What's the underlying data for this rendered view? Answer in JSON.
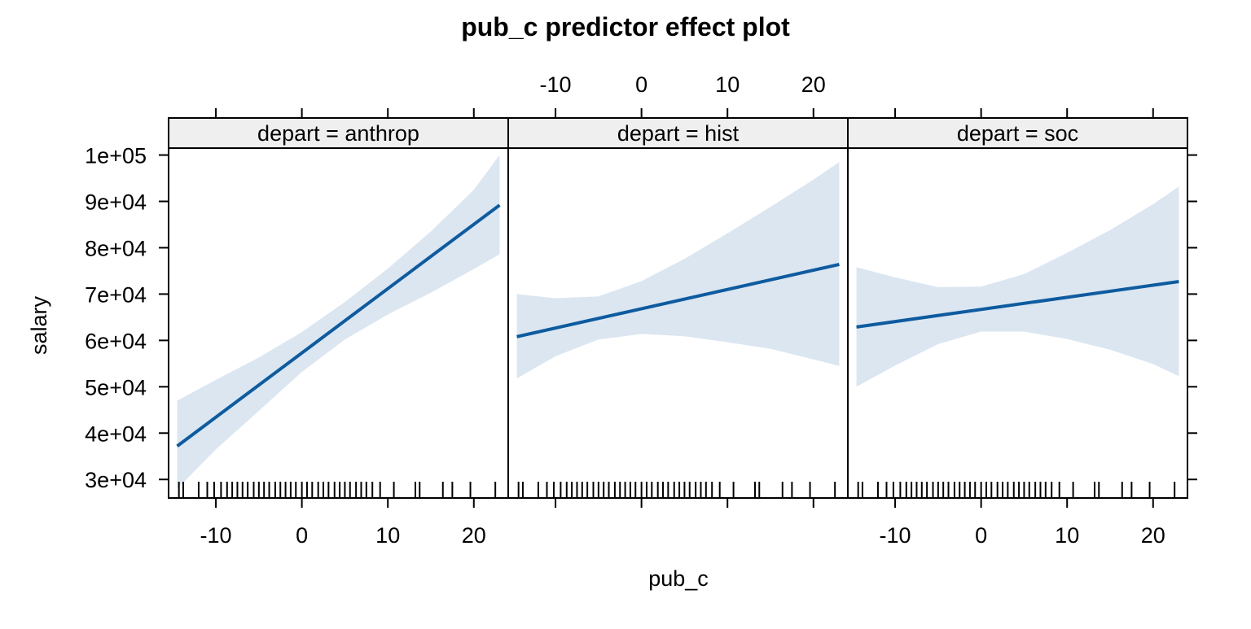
{
  "chart_data": {
    "type": "line",
    "title": "pub_c predictor effect plot",
    "xlabel": "pub_c",
    "ylabel": "salary",
    "xlim": [
      -15.5,
      24
    ],
    "ylim": [
      26000,
      101500
    ],
    "x_ticks": [
      -10,
      0,
      10,
      20
    ],
    "x_tick_labels": [
      "-10",
      "0",
      "10",
      "20"
    ],
    "y_ticks": [
      30000,
      40000,
      50000,
      60000,
      70000,
      80000,
      90000,
      100000
    ],
    "y_tick_labels": [
      "3e+04",
      "4e+04",
      "5e+04",
      "6e+04",
      "7e+04",
      "8e+04",
      "9e+04",
      "1e+05"
    ],
    "grid": false,
    "colors": {
      "line": "#0e5b9f",
      "band": "#dbe6f1",
      "strip": "#efefef",
      "axis": "#000000"
    },
    "panels": [
      {
        "strip": "depart = anthrop",
        "fit": {
          "x": [
            -14.5,
            23
          ],
          "y": [
            37200,
            89200
          ]
        },
        "band_upper": {
          "x": [
            -14.5,
            -10,
            -5,
            0,
            5,
            10,
            15,
            20,
            23
          ],
          "y": [
            47000,
            51500,
            56300,
            61800,
            68300,
            75500,
            83500,
            92500,
            100000
          ]
        },
        "band_lower": {
          "x": [
            -14.5,
            -10,
            -5,
            0,
            5,
            10,
            15,
            20,
            23
          ],
          "y": [
            28000,
            36500,
            44800,
            53200,
            60200,
            65600,
            70300,
            75400,
            78600
          ]
        },
        "rug": [
          -14.3,
          -13.8,
          -12.0,
          -11.0,
          -10.2,
          -9.4,
          -8.7,
          -8.1,
          -7.5,
          -6.9,
          -6.3,
          -5.6,
          -5.0,
          -4.4,
          -3.8,
          -3.1,
          -2.5,
          -1.9,
          -1.3,
          -0.7,
          0.0,
          0.6,
          1.2,
          1.9,
          2.5,
          3.1,
          3.8,
          4.4,
          5.0,
          5.6,
          6.3,
          6.9,
          7.5,
          8.2,
          9.1,
          10.7,
          13.2,
          13.7,
          16.4,
          17.5,
          19.6,
          22.5
        ]
      },
      {
        "strip": "depart = hist",
        "fit": {
          "x": [
            -14.5,
            23
          ],
          "y": [
            60800,
            76400
          ]
        },
        "band_upper": {
          "x": [
            -14.5,
            -10,
            -5,
            0,
            5,
            10,
            15,
            20,
            23
          ],
          "y": [
            70000,
            69100,
            69500,
            72800,
            77600,
            83100,
            88800,
            94700,
            98500
          ]
        },
        "band_lower": {
          "x": [
            -14.5,
            -10,
            -5,
            0,
            5,
            10,
            15,
            20,
            23
          ],
          "y": [
            51800,
            56600,
            60200,
            61400,
            60900,
            59600,
            58200,
            55900,
            54500
          ]
        },
        "rug": [
          -14.3,
          -13.8,
          -12.0,
          -11.0,
          -10.2,
          -9.4,
          -8.7,
          -8.1,
          -7.5,
          -6.9,
          -6.3,
          -5.6,
          -5.0,
          -4.4,
          -3.8,
          -3.1,
          -2.5,
          -1.9,
          -1.3,
          -0.7,
          0.0,
          0.6,
          1.2,
          1.9,
          2.5,
          3.1,
          3.8,
          4.4,
          5.0,
          5.6,
          6.3,
          6.9,
          7.5,
          8.2,
          9.1,
          10.7,
          13.2,
          13.7,
          16.4,
          17.5,
          19.6,
          22.5
        ]
      },
      {
        "strip": "depart = soc",
        "fit": {
          "x": [
            -14.5,
            23
          ],
          "y": [
            62900,
            72700
          ]
        },
        "band_upper": {
          "x": [
            -14.5,
            -10,
            -5,
            0,
            5,
            10,
            15,
            20,
            23
          ],
          "y": [
            75800,
            73600,
            71500,
            71600,
            74300,
            78900,
            83800,
            89400,
            93200
          ]
        },
        "band_lower": {
          "x": [
            -14.5,
            -10,
            -5,
            0,
            5,
            10,
            15,
            20,
            23
          ],
          "y": [
            50000,
            54600,
            59200,
            61900,
            61900,
            60300,
            58000,
            54900,
            52300
          ]
        },
        "rug": [
          -14.3,
          -13.8,
          -12.0,
          -11.0,
          -10.2,
          -9.4,
          -8.7,
          -8.1,
          -7.5,
          -6.9,
          -6.3,
          -5.6,
          -5.0,
          -4.4,
          -3.8,
          -3.1,
          -2.5,
          -1.9,
          -1.3,
          -0.7,
          0.0,
          0.6,
          1.2,
          1.9,
          2.5,
          3.1,
          3.8,
          4.4,
          5.0,
          5.6,
          6.3,
          6.9,
          7.5,
          8.2,
          9.1,
          10.7,
          13.2,
          13.7,
          16.4,
          17.5,
          19.6,
          22.5
        ]
      }
    ]
  }
}
